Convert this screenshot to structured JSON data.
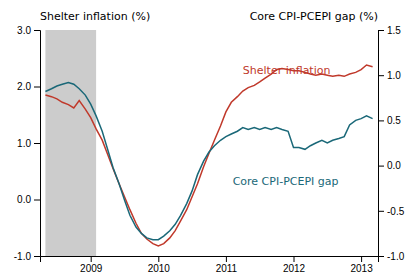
{
  "chart_data": {
    "type": "line",
    "y_label": "Shelter inflation (%)",
    "y2_label": "Core CPI-PCEPI gap (%)",
    "x": [
      2008.33,
      2008.42,
      2008.5,
      2008.58,
      2008.67,
      2008.75,
      2008.83,
      2008.92,
      2009.0,
      2009.08,
      2009.17,
      2009.25,
      2009.33,
      2009.42,
      2009.5,
      2009.58,
      2009.67,
      2009.75,
      2009.83,
      2009.92,
      2010.0,
      2010.08,
      2010.17,
      2010.25,
      2010.33,
      2010.42,
      2010.5,
      2010.58,
      2010.67,
      2010.75,
      2010.83,
      2010.92,
      2011.0,
      2011.08,
      2011.17,
      2011.25,
      2011.33,
      2011.42,
      2011.5,
      2011.58,
      2011.67,
      2011.75,
      2011.83,
      2011.92,
      2012.0,
      2012.08,
      2012.17,
      2012.25,
      2012.33,
      2012.42,
      2012.5,
      2012.58,
      2012.67,
      2012.75,
      2012.83,
      2012.92,
      2013.0,
      2013.08,
      2013.17
    ],
    "series": [
      {
        "color": "#c0392b",
        "values": [
          1.85,
          1.82,
          1.78,
          1.72,
          1.68,
          1.62,
          1.75,
          1.6,
          1.45,
          1.25,
          1.05,
          0.8,
          0.55,
          0.28,
          0.05,
          -0.18,
          -0.42,
          -0.6,
          -0.7,
          -0.78,
          -0.82,
          -0.78,
          -0.68,
          -0.55,
          -0.38,
          -0.18,
          0.05,
          0.28,
          0.58,
          0.82,
          1.05,
          1.3,
          1.55,
          1.72,
          1.82,
          1.92,
          1.98,
          2.02,
          2.08,
          2.15,
          2.22,
          2.3,
          2.32,
          2.3,
          2.28,
          2.28,
          2.25,
          2.22,
          2.2,
          2.22,
          2.2,
          2.18,
          2.2,
          2.18,
          2.22,
          2.25,
          2.3,
          2.38,
          2.35
        ]
      },
      {
        "color": "#1a6878",
        "axis": "y2",
        "values": [
          0.82,
          0.85,
          0.88,
          0.9,
          0.92,
          0.9,
          0.85,
          0.78,
          0.68,
          0.55,
          0.38,
          0.18,
          -0.02,
          -0.2,
          -0.38,
          -0.55,
          -0.68,
          -0.75,
          -0.8,
          -0.82,
          -0.82,
          -0.78,
          -0.72,
          -0.65,
          -0.55,
          -0.42,
          -0.28,
          -0.1,
          0.05,
          0.15,
          0.22,
          0.28,
          0.32,
          0.35,
          0.38,
          0.42,
          0.4,
          0.42,
          0.4,
          0.42,
          0.4,
          0.42,
          0.4,
          0.38,
          0.2,
          0.2,
          0.18,
          0.22,
          0.25,
          0.28,
          0.25,
          0.28,
          0.3,
          0.32,
          0.45,
          0.5,
          0.52,
          0.55,
          0.52
        ]
      }
    ],
    "shaded_regions": [
      {
        "start": 2008.33,
        "end": 2009.08,
        "color": "#cccccc"
      }
    ],
    "annotations": [
      {
        "text": "Shelter inflation",
        "x": 2011.25,
        "y": 2.18,
        "color": "#c0392b"
      },
      {
        "text": "Core CPI-PCEPI gap",
        "x": 2011.1,
        "y": 0.22,
        "color": "#1a6878"
      }
    ],
    "xlim": [
      2008.25,
      2013.25
    ],
    "xticks": [
      2009,
      2010,
      2011,
      2012,
      2013
    ],
    "ylim": [
      -1.0,
      3.0
    ],
    "yticks": [
      {
        "value": -1.0,
        "label": "-1.0"
      },
      {
        "value": 0.0,
        "label": "0.0"
      },
      {
        "value": 1.0,
        "label": "1.0"
      },
      {
        "value": 2.0,
        "label": "2.0"
      },
      {
        "value": 3.0,
        "label": "3.0"
      }
    ],
    "y2lim": [
      -1.0,
      1.5
    ],
    "y2ticks": [
      {
        "value": -1.0,
        "label": "-1.0"
      },
      -0.5,
      {
        "value": 0.0,
        "label": "0.0"
      },
      0.5,
      {
        "value": 1.0,
        "label": "1.0"
      },
      1.5
    ],
    "grid": false
  }
}
